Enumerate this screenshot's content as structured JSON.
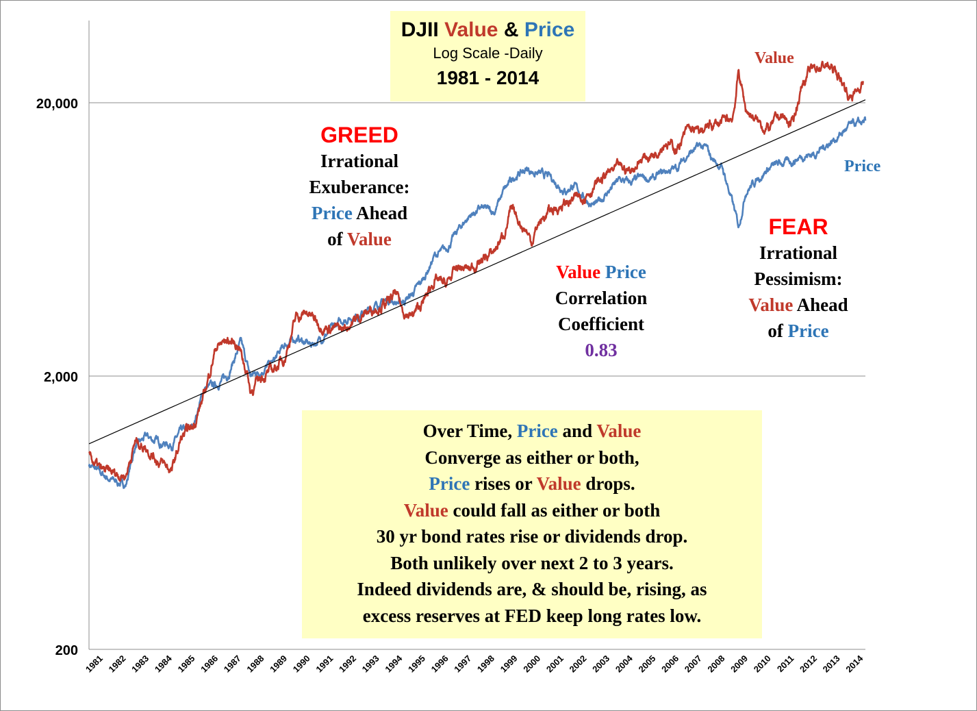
{
  "title": {
    "line1_prefix": "DJII",
    "line1_value": "Value",
    "line1_amp": "&",
    "line1_price": "Price",
    "line2": "Log Scale -Daily",
    "line3": "1981 - 2014"
  },
  "greed": {
    "heading": "GREED",
    "line1": "Irrational",
    "line2": "Exuberance:",
    "line3_price": "Price",
    "line3_rest": "Ahead",
    "line4_of": "of",
    "line4_value": "Value"
  },
  "fear": {
    "heading": "FEAR",
    "line1": "Irrational",
    "line2": "Pessimism:",
    "line3_value": "Value",
    "line3_rest": "Ahead",
    "line4_of": "of",
    "line4_price": "Price"
  },
  "correlation": {
    "value_word": "Value",
    "price_word": "Price",
    "line2": "Correlation",
    "line3": "Coefficient",
    "coefficient": "0.83"
  },
  "note": {
    "l1_a": "Over Time,",
    "l1_price": "Price",
    "l1_b": "and",
    "l1_value": "Value",
    "l2": "Converge as either or both,",
    "l3_price": "Price",
    "l3_b": "rises or",
    "l3_value": "Value",
    "l3_c": "drops.",
    "l4_value": "Value",
    "l4_b": "could fall as either or both",
    "l5": "30 yr bond rates rise or dividends drop.",
    "l6": "Both unlikely over next 2 to 3 years.",
    "l7": "Indeed dividends are, & should be, rising, as",
    "l8": "excess reserves at FED keep long rates low."
  },
  "series_labels": {
    "value": "Value",
    "price": "Price"
  },
  "colors": {
    "value": "#c0392b",
    "price": "#4f81bd",
    "trend": "#000000",
    "box": "#ffffc4"
  },
  "chart_data": {
    "type": "line",
    "scale": "log",
    "title": "DJII Value & Price",
    "subtitle": "Log Scale -Daily 1981 - 2014",
    "ylim": [
      200,
      40000
    ],
    "yticks": [
      200,
      2000,
      20000
    ],
    "ytick_labels": [
      "200",
      "2,000",
      "20,000"
    ],
    "xlim": [
      1981.0,
      2014.7
    ],
    "x_ticks": [
      "1981",
      "1982",
      "1983",
      "1984",
      "1985",
      "1986",
      "1987",
      "1988",
      "1989",
      "1990",
      "1991",
      "1992",
      "1993",
      "1994",
      "1995",
      "1996",
      "1997",
      "1998",
      "1999",
      "2000",
      "2001",
      "2002",
      "2003",
      "2004",
      "2005",
      "2006",
      "2007",
      "2008",
      "2009",
      "2010",
      "2011",
      "2012",
      "2013",
      "2014"
    ],
    "series": [
      {
        "name": "Value",
        "x": [
          1981.0,
          1981.5,
          1982.0,
          1982.6,
          1983.0,
          1983.5,
          1984.0,
          1984.6,
          1985.0,
          1985.5,
          1986.0,
          1986.5,
          1987.0,
          1987.5,
          1987.9,
          1988.0,
          1988.5,
          1989.0,
          1989.5,
          1990.0,
          1990.5,
          1991.0,
          1991.5,
          1992.0,
          1992.5,
          1993.0,
          1993.5,
          1994.0,
          1994.3,
          1994.6,
          1995.0,
          1995.5,
          1996.0,
          1996.5,
          1997.0,
          1997.5,
          1998.0,
          1998.5,
          1999.0,
          1999.3,
          1999.6,
          2000.0,
          2000.2,
          2000.5,
          2001.0,
          2001.5,
          2002.0,
          2002.5,
          2003.0,
          2003.5,
          2004.0,
          2004.5,
          2005.0,
          2005.5,
          2006.0,
          2006.5,
          2007.0,
          2007.5,
          2008.0,
          2008.5,
          2008.9,
          2009.0,
          2009.2,
          2009.5,
          2010.0,
          2010.5,
          2011.0,
          2011.5,
          2012.0,
          2012.3,
          2012.6,
          2013.0,
          2013.4,
          2013.8,
          2014.0,
          2014.3,
          2014.6
        ],
        "y": [
          1020,
          900,
          880,
          870,
          1150,
          1100,
          980,
          900,
          1180,
          1300,
          1700,
          2550,
          2700,
          2600,
          2000,
          1750,
          2000,
          2100,
          2350,
          3300,
          3400,
          3100,
          3000,
          2950,
          3200,
          3400,
          3600,
          3700,
          4000,
          3500,
          3300,
          3700,
          4500,
          4300,
          5000,
          4900,
          5300,
          5600,
          6600,
          8000,
          7500,
          6800,
          6200,
          7200,
          8000,
          8400,
          8800,
          9200,
          10000,
          11000,
          11500,
          11300,
          12500,
          13000,
          14500,
          13500,
          16000,
          15500,
          16500,
          17000,
          17500,
          19000,
          26000,
          19000,
          17000,
          16000,
          18000,
          16500,
          24000,
          26000,
          27000,
          27500,
          26000,
          23000,
          21000,
          22000,
          24000
        ]
      },
      {
        "name": "Price",
        "x": [
          1981.0,
          1981.5,
          1982.0,
          1982.6,
          1983.0,
          1983.5,
          1984.0,
          1984.6,
          1985.0,
          1985.5,
          1986.0,
          1986.5,
          1987.0,
          1987.6,
          1987.8,
          1988.0,
          1988.5,
          1989.0,
          1989.5,
          1990.0,
          1990.6,
          1991.0,
          1991.5,
          1992.0,
          1992.5,
          1993.0,
          1993.5,
          1994.0,
          1994.5,
          1995.0,
          1995.5,
          1996.0,
          1996.5,
          1997.0,
          1997.5,
          1998.0,
          1998.6,
          1999.0,
          1999.5,
          2000.0,
          2000.5,
          2001.0,
          2001.7,
          2002.0,
          2002.5,
          2002.8,
          2003.0,
          2003.5,
          2004.0,
          2004.5,
          2005.0,
          2005.5,
          2006.0,
          2006.5,
          2007.0,
          2007.5,
          2007.8,
          2008.0,
          2008.5,
          2008.9,
          2009.2,
          2009.5,
          2010.0,
          2010.5,
          2011.0,
          2011.5,
          2012.0,
          2012.5,
          2013.0,
          2013.5,
          2014.0,
          2014.5,
          2014.7
        ],
        "y": [
          950,
          880,
          830,
          800,
          1100,
          1200,
          1150,
          1120,
          1250,
          1300,
          1800,
          1850,
          2000,
          2650,
          2300,
          2000,
          2100,
          2250,
          2600,
          2750,
          2600,
          2700,
          2950,
          3200,
          3300,
          3400,
          3650,
          3800,
          3700,
          3950,
          4500,
          5500,
          5800,
          6800,
          7700,
          8200,
          8000,
          9500,
          10800,
          11400,
          11000,
          10700,
          9500,
          10000,
          9000,
          8500,
          8400,
          9400,
          10400,
          10200,
          10600,
          10500,
          11200,
          11500,
          13000,
          13800,
          13600,
          12600,
          11500,
          8800,
          7000,
          9500,
          10500,
          11500,
          12000,
          12200,
          12800,
          13000,
          14000,
          15000,
          16400,
          16800,
          17200
        ]
      },
      {
        "name": "Trend",
        "x": [
          1981.0,
          2014.7
        ],
        "y": [
          1130,
          20500
        ]
      }
    ]
  }
}
